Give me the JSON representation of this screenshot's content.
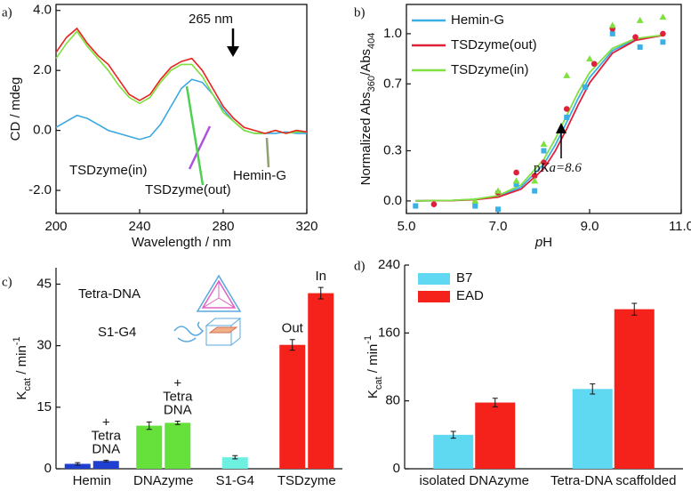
{
  "chart_data": [
    {
      "type": "line",
      "panel": "a)",
      "x_label": "Wavelength / nm",
      "y_label": "CD / mdeg",
      "x": [
        200,
        205,
        210,
        215,
        220,
        225,
        230,
        235,
        240,
        245,
        250,
        255,
        260,
        265,
        270,
        275,
        280,
        285,
        290,
        295,
        300,
        305,
        310,
        315,
        320
      ],
      "xlim": [
        200,
        320
      ],
      "xticks": [
        200,
        240,
        280,
        320
      ],
      "ylim": [
        -2.77,
        4.2
      ],
      "yticks": [
        {
          "value": -2,
          "label": "-2.0"
        },
        {
          "value": 0,
          "label": "0.0"
        },
        {
          "value": 2,
          "label": "2.0"
        },
        {
          "value": 4,
          "label": "4.0"
        }
      ],
      "series": [
        {
          "name": "Hemin-G",
          "color": "#3aa8e0",
          "values": [
            0.1,
            0.3,
            0.5,
            0.4,
            0.2,
            0.0,
            -0.1,
            -0.2,
            -0.3,
            -0.2,
            0.2,
            0.8,
            1.4,
            1.7,
            1.6,
            1.2,
            0.7,
            0.3,
            0.0,
            -0.1,
            -0.1,
            -0.1,
            -0.05,
            -0.1,
            -0.1
          ]
        },
        {
          "name": "TSDzyme(in)",
          "color": "#7ee03a",
          "values": [
            2.4,
            2.9,
            3.3,
            2.8,
            2.4,
            2.0,
            1.5,
            1.1,
            0.9,
            1.1,
            1.6,
            2.0,
            2.2,
            2.2,
            1.8,
            1.2,
            0.6,
            0.3,
            0.0,
            -0.1,
            -0.1,
            0.0,
            -0.1,
            -0.05,
            -0.05
          ]
        },
        {
          "name": "TSDzyme(out)",
          "color": "#e8231f",
          "values": [
            2.6,
            3.1,
            3.4,
            2.9,
            2.5,
            2.2,
            1.7,
            1.2,
            1.0,
            1.2,
            1.7,
            2.1,
            2.3,
            2.4,
            2.0,
            1.4,
            0.8,
            0.4,
            0.1,
            0.0,
            -0.1,
            0.0,
            -0.1,
            0.0,
            -0.05
          ]
        }
      ],
      "annotations": [
        "265 nm",
        "TSDzyme(in)",
        "TSDzyme(out)",
        "Hemin-G"
      ]
    },
    {
      "type": "scatter",
      "panel": "b)",
      "x_label": [
        "p",
        "H"
      ],
      "y_label": [
        "Normalized Abs",
        "360",
        "/Abs",
        "404"
      ],
      "xlim": [
        5,
        11
      ],
      "xticks": [
        {
          "value": 5,
          "label": "5.0"
        },
        {
          "value": 7,
          "label": "7.0"
        },
        {
          "value": 9,
          "label": "9.0"
        },
        {
          "value": 11,
          "label": "11.0"
        }
      ],
      "ylim": [
        -0.075,
        1.175
      ],
      "yticks": [
        {
          "value": 0,
          "label": "0.0"
        },
        0.3,
        0.7,
        {
          "value": 1,
          "label": "1.0"
        }
      ],
      "legend": "top-left",
      "x": [
        5.2,
        6.0,
        6.5,
        7.0,
        7.5,
        8.0,
        8.25,
        8.5,
        8.75,
        9.0,
        9.5,
        10.0,
        10.6
      ],
      "series": [
        {
          "name": "Hemin-G",
          "color": "#3ab0e6",
          "values": [
            0.0004,
            0.003,
            0.009,
            0.027,
            0.082,
            0.22,
            0.334,
            0.471,
            0.613,
            0.738,
            0.899,
            0.966,
            0.991
          ],
          "points_x": [
            5.2,
            6.5,
            7.0,
            7.4,
            7.8,
            8.0,
            8.5,
            8.9,
            9.5,
            10.1,
            10.6
          ],
          "points_y": [
            -0.03,
            -0.03,
            -0.05,
            0.1,
            0.06,
            0.3,
            0.5,
            0.68,
            1.0,
            0.92,
            0.95
          ]
        },
        {
          "name": "TSDzyme(out)",
          "color": "#e0203a",
          "values": [
            0.0004,
            0.0024,
            0.0075,
            0.023,
            0.07,
            0.193,
            0.299,
            0.431,
            0.574,
            0.706,
            0.884,
            0.96,
            0.99
          ],
          "points_x": [
            5.6,
            7.0,
            7.4,
            7.8,
            8.0,
            8.5,
            9.1,
            9.5,
            10.0,
            10.6
          ],
          "points_y": [
            -0.02,
            0.05,
            0.17,
            0.15,
            0.23,
            0.55,
            0.82,
            1.03,
            0.98,
            1.0
          ]
        },
        {
          "name": "TSDzyme(in)",
          "color": "#80e040",
          "values": [
            0.0005,
            0.0033,
            0.0104,
            0.032,
            0.095,
            0.249,
            0.371,
            0.511,
            0.651,
            0.768,
            0.913,
            0.971,
            0.992
          ],
          "points_x": [
            6.5,
            7.0,
            7.4,
            7.8,
            8.0,
            8.5,
            9.0,
            9.5,
            10.1,
            10.6
          ],
          "points_y": [
            0.0,
            0.06,
            0.12,
            0.12,
            0.34,
            0.75,
            0.85,
            1.05,
            1.08,
            1.1
          ]
        }
      ],
      "annotation": [
        "p",
        "Ka=8.6"
      ]
    },
    {
      "type": "bar",
      "panel": "c)",
      "y_label": [
        "K",
        "cat",
        " / min",
        "-1"
      ],
      "ylim": [
        0,
        49
      ],
      "yticks": [
        0,
        15,
        30,
        45
      ],
      "categories": [
        {
          "label": "Hemin",
          "bars": [
            {
              "value": 1.2,
              "error": 0.3,
              "color": "#1f3fd0"
            },
            {
              "value": 1.9,
              "error": 0.2,
              "color": "#1f3fd0",
              "note": [
                "+",
                "Tetra",
                "DNA"
              ]
            }
          ]
        },
        {
          "label": "DNAzyme",
          "bars": [
            {
              "value": 10.5,
              "error": 0.9,
              "color": "#66e03a"
            },
            {
              "value": 11.2,
              "error": 0.4,
              "color": "#66e03a",
              "note": [
                "+",
                "Tetra",
                "DNA"
              ]
            }
          ]
        },
        {
          "label": "S1-G4",
          "bars": [
            {
              "value": 2.8,
              "error": 0.4,
              "color": "#6ef0e0"
            }
          ]
        },
        {
          "label": "TSDzyme",
          "bars": [
            {
              "value": 30.2,
              "error": 1.3,
              "color": "#f5221c",
              "note": [
                "Out"
              ]
            },
            {
              "value": 42.8,
              "error": 1.4,
              "color": "#f5221c",
              "note": [
                "In"
              ]
            }
          ]
        }
      ],
      "annotations": [
        "Tetra-DNA",
        "S1-G4"
      ]
    },
    {
      "type": "grouped-bar",
      "panel": "d)",
      "y_label": [
        "K",
        "cat",
        " / min",
        "-1"
      ],
      "ylim": [
        0,
        240
      ],
      "yticks": [
        0,
        80,
        160,
        240
      ],
      "categories": [
        "isolated DNAzyme",
        "Tetra-DNA scaffolded"
      ],
      "legend": "top-left",
      "series": [
        {
          "name": "B7",
          "color": "#5fd8f2",
          "values": [
            40,
            94
          ],
          "errors": [
            4,
            6
          ]
        },
        {
          "name": "EAD",
          "color": "#f5221c",
          "values": [
            78,
            188
          ],
          "errors": [
            5,
            7
          ]
        }
      ]
    }
  ]
}
